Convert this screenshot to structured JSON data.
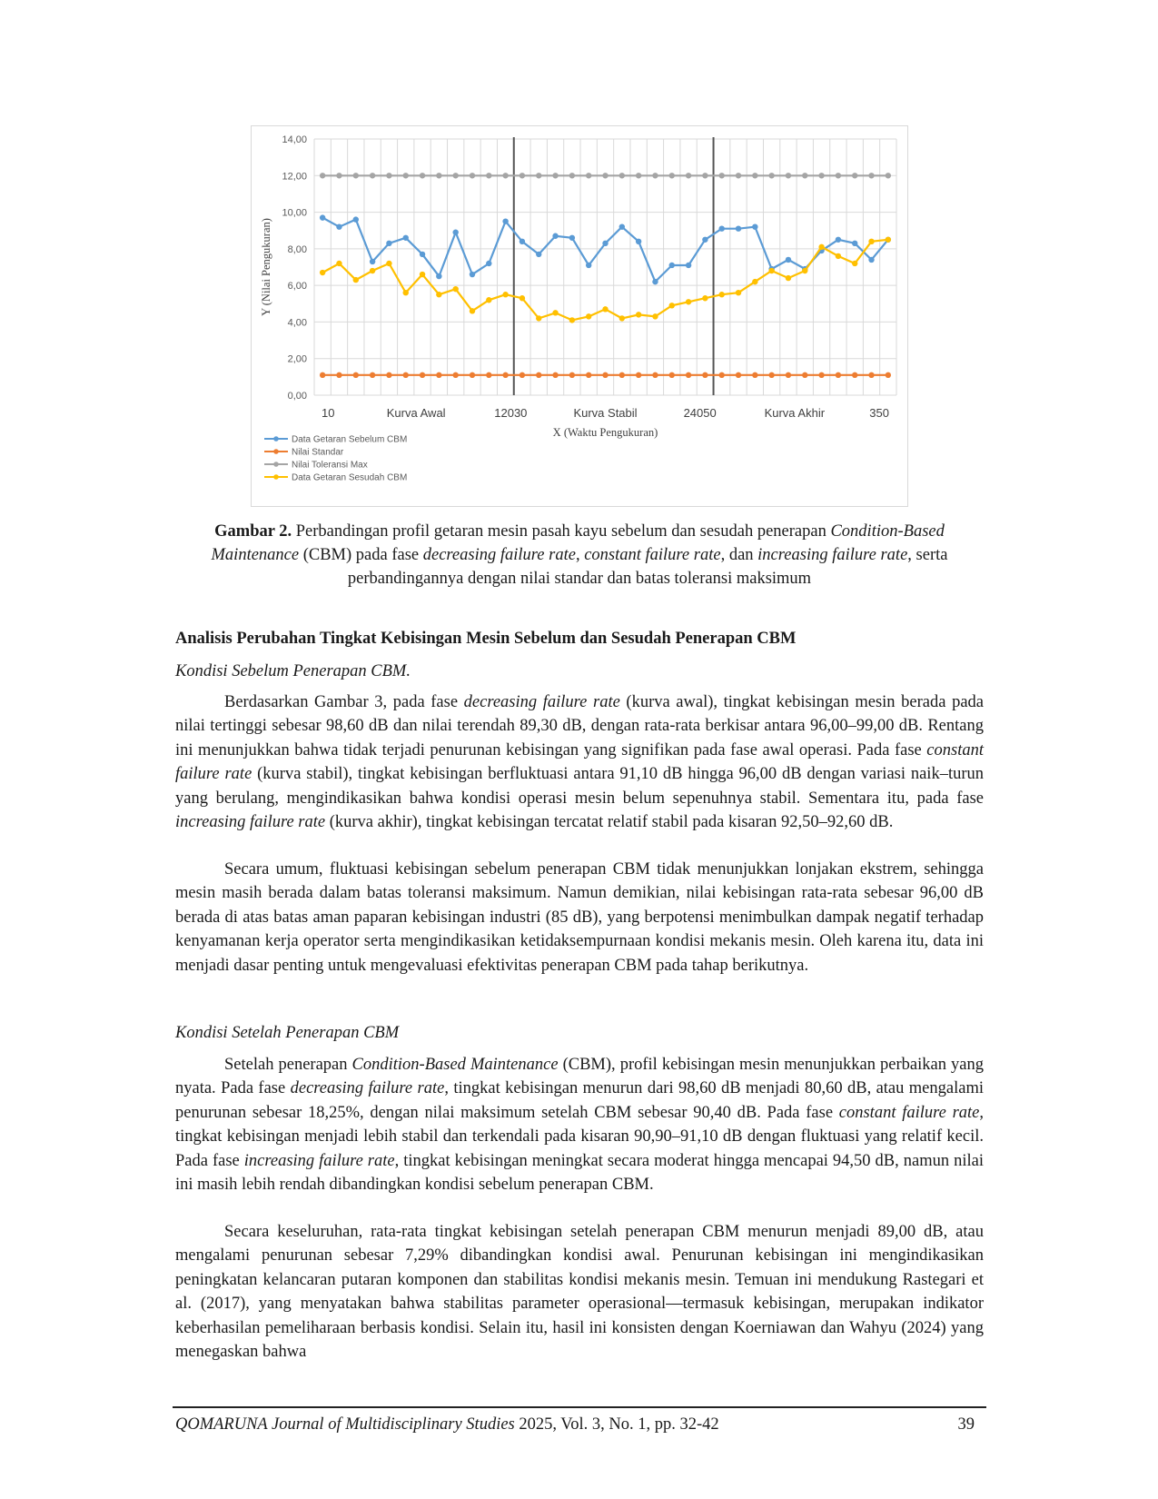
{
  "chart_data": {
    "type": "line",
    "ylabel": "Y (Nilai Pengukuran)",
    "xlabel": "X (Waktu Pengukuran)",
    "ylim": [
      0,
      14
    ],
    "yticks": [
      "0,00",
      "2,00",
      "4,00",
      "6,00",
      "8,00",
      "10,00",
      "12,00",
      "14,00"
    ],
    "x_labels": [
      "10",
      "Kurva Awal",
      "12030",
      "Kurva Stabil",
      "24050",
      "Kurva Akhir",
      "350"
    ],
    "grid": true,
    "legend_position": "bottom-left",
    "series": [
      {
        "name": "Data Getaran Sebelum CBM",
        "color": "#5b9bd5",
        "values": [
          9.7,
          9.2,
          9.6,
          7.3,
          8.3,
          8.6,
          7.7,
          6.5,
          8.9,
          6.6,
          7.2,
          9.5,
          8.4,
          7.7,
          8.7,
          8.6,
          7.1,
          8.3,
          9.2,
          8.4,
          6.2,
          7.1,
          7.1,
          8.5,
          9.1,
          9.1,
          9.2,
          6.9,
          7.4,
          6.9,
          7.9,
          8.5,
          8.3,
          7.4,
          8.5
        ]
      },
      {
        "name": "Nilai Standar",
        "color": "#ed7d31",
        "values": [
          1.1,
          1.1,
          1.1,
          1.1,
          1.1,
          1.1,
          1.1,
          1.1,
          1.1,
          1.1,
          1.1,
          1.1,
          1.1,
          1.1,
          1.1,
          1.1,
          1.1,
          1.1,
          1.1,
          1.1,
          1.1,
          1.1,
          1.1,
          1.1,
          1.1,
          1.1,
          1.1,
          1.1,
          1.1,
          1.1,
          1.1,
          1.1,
          1.1,
          1.1,
          1.1
        ]
      },
      {
        "name": "Nilai Toleransi Max",
        "color": "#a5a5a5",
        "values": [
          12,
          12,
          12,
          12,
          12,
          12,
          12,
          12,
          12,
          12,
          12,
          12,
          12,
          12,
          12,
          12,
          12,
          12,
          12,
          12,
          12,
          12,
          12,
          12,
          12,
          12,
          12,
          12,
          12,
          12,
          12,
          12,
          12,
          12,
          12
        ]
      },
      {
        "name": "Data Getaran Sesudah CBM",
        "color": "#ffc000",
        "values": [
          6.7,
          7.2,
          6.3,
          6.8,
          7.2,
          5.6,
          6.6,
          5.5,
          5.8,
          4.6,
          5.2,
          5.5,
          5.3,
          4.2,
          4.5,
          4.1,
          4.3,
          4.7,
          4.2,
          4.4,
          4.3,
          4.9,
          5.1,
          5.3,
          5.5,
          5.6,
          6.2,
          6.8,
          6.4,
          6.8,
          8.1,
          7.6,
          7.2,
          8.4,
          8.5
        ]
      }
    ],
    "phase_dividers_after_point": [
      12,
      24
    ]
  },
  "caption": {
    "label": "Gambar 2.",
    "t1": " Perbandingan profil getaran mesin pasah kayu sebelum dan sesudah penerapan ",
    "i1": "Condition-Based Maintenance",
    "t2": " (CBM) pada fase ",
    "i2": "decreasing failure rate",
    "t3": ", ",
    "i3": "constant failure rate",
    "t4": ", dan ",
    "i4": "increasing failure rate",
    "t5": ", serta perbandingannya dengan nilai standar dan batas toleransi maksimum"
  },
  "section_title": "Analisis Perubahan Tingkat Kebisingan Mesin Sebelum dan Sesudah Penerapan CBM",
  "sub1": "Kondisi Sebelum Penerapan CBM.",
  "p1": {
    "a": "Berdasarkan Gambar 3, pada fase ",
    "b": "decreasing failure rate",
    "c": " (kurva awal), tingkat kebisingan mesin berada pada nilai tertinggi sebesar 98,60 dB dan nilai terendah 89,30 dB, dengan rata-rata berkisar antara 96,00–99,00 dB. Rentang ini menunjukkan bahwa tidak terjadi penurunan kebisingan yang signifikan pada fase awal operasi. Pada fase ",
    "d": "constant failure rate",
    "e": " (kurva stabil), tingkat kebisingan berfluktuasi antara 91,10 dB hingga 96,00 dB dengan variasi naik–turun yang berulang, mengindikasikan bahwa kondisi operasi mesin belum sepenuhnya stabil. Sementara itu, pada fase ",
    "f": "increasing failure rate",
    "g": " (kurva akhir), tingkat kebisingan tercatat relatif stabil pada kisaran 92,50–92,60 dB."
  },
  "p2": "Secara umum, fluktuasi kebisingan sebelum penerapan CBM tidak menunjukkan lonjakan ekstrem, sehingga mesin masih berada dalam batas toleransi maksimum. Namun demikian, nilai kebisingan rata-rata sebesar 96,00 dB berada di atas batas aman paparan kebisingan industri (85 dB), yang berpotensi menimbulkan dampak negatif terhadap kenyamanan kerja operator serta mengindikasikan ketidaksempurnaan kondisi mekanis mesin. Oleh karena itu, data ini menjadi dasar penting untuk mengevaluasi efektivitas penerapan CBM pada tahap berikutnya.",
  "sub2": "Kondisi Setelah Penerapan CBM",
  "p3": {
    "a": "Setelah penerapan ",
    "b": "Condition-Based Maintenance",
    "c": " (CBM), profil kebisingan mesin menunjukkan perbaikan yang nyata. Pada fase ",
    "d": "decreasing failure rate",
    "e": ", tingkat kebisingan menurun dari 98,60 dB menjadi 80,60 dB, atau mengalami penurunan sebesar 18,25%, dengan nilai maksimum setelah CBM sebesar 90,40 dB. Pada fase ",
    "f": "constant failure rate",
    "g": ", tingkat kebisingan menjadi lebih stabil dan terkendali pada kisaran 90,90–91,10 dB dengan fluktuasi yang relatif kecil. Pada fase ",
    "h": "increasing failure rate",
    "i": ", tingkat kebisingan meningkat secara moderat hingga mencapai 94,50 dB, namun nilai ini masih lebih rendah dibandingkan kondisi sebelum penerapan CBM."
  },
  "p4": "Secara keseluruhan, rata-rata tingkat kebisingan setelah penerapan CBM menurun menjadi 89,00 dB, atau mengalami penurunan sebesar 7,29% dibandingkan kondisi awal. Penurunan kebisingan ini mengindikasikan peningkatan kelancaran putaran komponen dan stabilitas kondisi mekanis mesin. Temuan ini mendukung Rastegari et al. (2017), yang menyatakan bahwa stabilitas parameter operasional—termasuk kebisingan, merupakan indikator keberhasilan pemeliharaan berbasis kondisi. Selain itu, hasil ini konsisten dengan Koerniawan dan Wahyu (2024) yang menegaskan bahwa",
  "footer": {
    "journal": "QOMARUNA Journal of Multidisciplinary Studies",
    "rest": " 2025, Vol. 3, No. 1, pp. 32-42",
    "page": "39"
  }
}
